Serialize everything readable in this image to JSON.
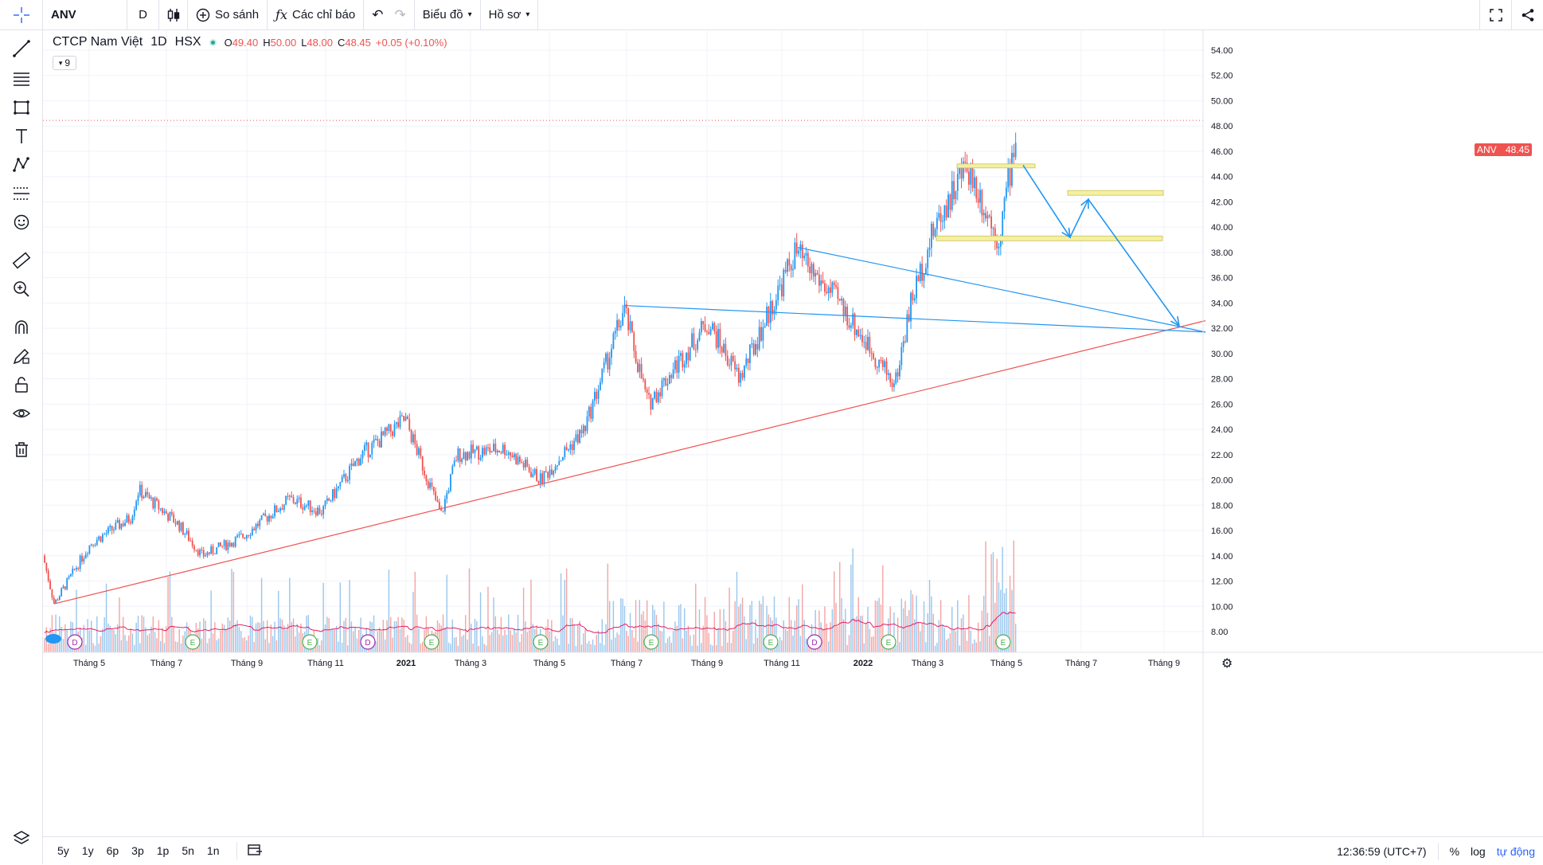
{
  "topbar": {
    "symbol": "ANV",
    "interval": "D",
    "compare_label": "So sánh",
    "indicators_label": "Các chỉ báo",
    "chart_label": "Biểu đồ",
    "profile_label": "Hồ sơ"
  },
  "legend": {
    "name": "CTCP Nam Việt",
    "interval": "1D",
    "exchange": "HSX",
    "o_label": "O",
    "o": "49.40",
    "h_label": "H",
    "h": "50.00",
    "l_label": "L",
    "l": "48.00",
    "c_label": "C",
    "c": "48.45",
    "change": "+0.05 (+0.10%)",
    "collapsed_count": "9"
  },
  "last_price": {
    "symbol": "ANV",
    "value": "48.45"
  },
  "y_axis_labels": [
    "54.00",
    "52.00",
    "50.00",
    "48.00",
    "46.00",
    "44.00",
    "42.00",
    "40.00",
    "38.00",
    "36.00",
    "34.00",
    "32.00",
    "30.00",
    "28.00",
    "26.00",
    "24.00",
    "22.00",
    "20.00",
    "18.00",
    "16.00",
    "14.00",
    "12.00",
    "10.00",
    "8.00"
  ],
  "x_axis_labels": [
    "Tháng 5",
    "Tháng 7",
    "Tháng 9",
    "Tháng 11",
    "2021",
    "Tháng 3",
    "Tháng 5",
    "Tháng 7",
    "Tháng 9",
    "Tháng 11",
    "2022",
    "Tháng 3",
    "Tháng 5",
    "Tháng 7",
    "Tháng 9"
  ],
  "event_markers": [
    "D",
    "E",
    "E",
    "D",
    "E",
    "E",
    "E",
    "E",
    "D",
    "E",
    "E"
  ],
  "bottom": {
    "ranges": [
      "5y",
      "1y",
      "6p",
      "3p",
      "1p",
      "5n",
      "1n"
    ],
    "time": "12:36:59 (UTC+7)",
    "percent": "%",
    "log": "log",
    "auto": "tự động"
  },
  "colors": {
    "up": "#26a69a",
    "down": "#ef5350",
    "bull_blue": "#2196f3",
    "trend_red": "#ef5350",
    "zone_yellow": "#f5f0a0"
  },
  "chart_data": {
    "type": "candlestick",
    "symbol": "ANV",
    "series_points": [
      {
        "date": "2020-04",
        "close": 14.0
      },
      {
        "date": "2020-04",
        "close": 10.2
      },
      {
        "date": "2020-05",
        "close": 15.0
      },
      {
        "date": "2020-06",
        "close": 17.0
      },
      {
        "date": "2020-06",
        "close": 19.2
      },
      {
        "date": "2020-07",
        "close": 16.5
      },
      {
        "date": "2020-08",
        "close": 14.0
      },
      {
        "date": "2020-09",
        "close": 15.5
      },
      {
        "date": "2020-10",
        "close": 18.5
      },
      {
        "date": "2020-11",
        "close": 17.5
      },
      {
        "date": "2020-12",
        "close": 22.0
      },
      {
        "date": "2021-01",
        "close": 24.8
      },
      {
        "date": "2021-02",
        "close": 17.2
      },
      {
        "date": "2021-03",
        "close": 22.0
      },
      {
        "date": "2021-04",
        "close": 22.5
      },
      {
        "date": "2021-05",
        "close": 20.0
      },
      {
        "date": "2021-06",
        "close": 24.0
      },
      {
        "date": "2021-07",
        "close": 33.5
      },
      {
        "date": "2021-08",
        "close": 26.0
      },
      {
        "date": "2021-09",
        "close": 32.5
      },
      {
        "date": "2021-10",
        "close": 28.0
      },
      {
        "date": "2021-11",
        "close": 38.0
      },
      {
        "date": "2021-12",
        "close": 34.0
      },
      {
        "date": "2022-01",
        "close": 27.5
      },
      {
        "date": "2022-02",
        "close": 34.0
      },
      {
        "date": "2022-03",
        "close": 40.0
      },
      {
        "date": "2022-04",
        "close": 45.0
      },
      {
        "date": "2022-04",
        "close": 39.0
      },
      {
        "date": "2022-05",
        "close": 48.45
      }
    ],
    "ylim": [
      7,
      55
    ]
  }
}
